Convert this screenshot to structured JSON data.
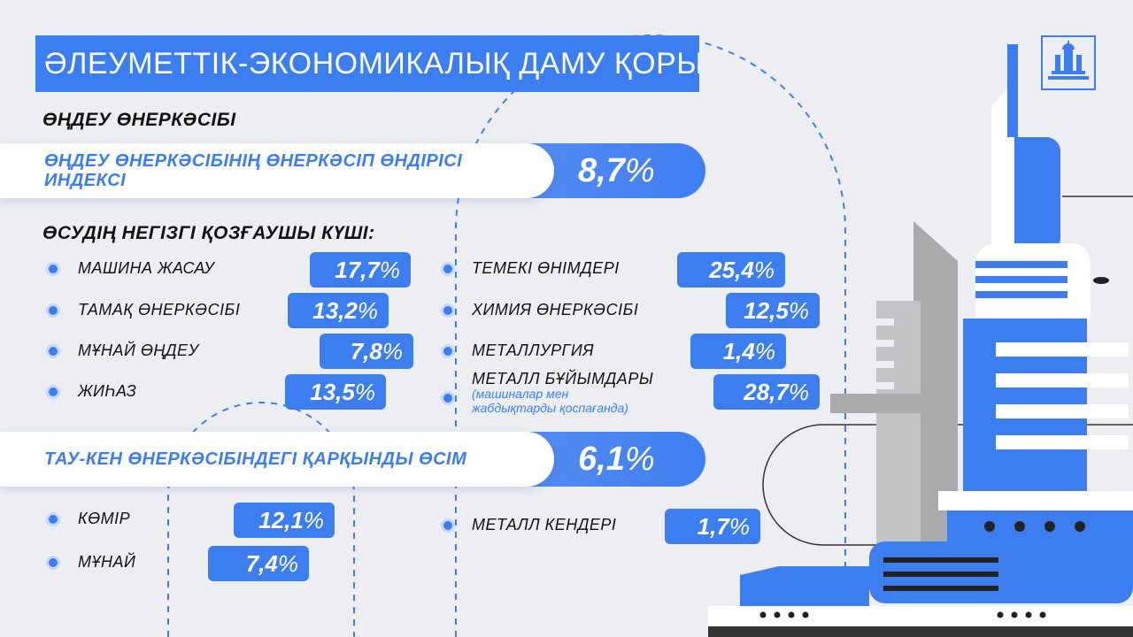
{
  "header": {
    "title": "ӘЛЕУМЕТТІК-ЭКОНОМИКАЛЫҚ ДАМУ ҚОРЫТЫНДЫЛАРЫ"
  },
  "manufacturing": {
    "heading": "ӨҢДЕУ ӨНЕРКӘСІБІ",
    "index_label": "ӨҢДЕУ ӨНЕРКӘСІБІНІҢ ӨНЕРКӘСІП ӨНДІРІСІ ИНДЕКСІ",
    "index_value": "8,7",
    "drivers_heading": "ӨСУДІҢ НЕГІЗГІ ҚОЗҒАУШЫ КҮШІ:",
    "left_items": [
      {
        "label": "МАШИНА ЖАСАУ",
        "value": "17,7"
      },
      {
        "label": "ТАМАҚ ӨНЕРКӘСІБІ",
        "value": "13,2"
      },
      {
        "label": "МҰНАЙ ӨҢДЕУ",
        "value": "7,8"
      },
      {
        "label": "ЖИҺАЗ",
        "value": "13,5"
      }
    ],
    "right_items": [
      {
        "label": "ТЕМЕКІ ӨНІМДЕРІ",
        "value": "25,4"
      },
      {
        "label": "ХИМИЯ ӨНЕРКӘСІБІ",
        "value": "12,5"
      },
      {
        "label": "МЕТАЛЛУРГИЯ",
        "value": "1,4"
      },
      {
        "label": "МЕТАЛЛ БҰЙЫМДАРЫ",
        "sub1": "(машиналар мен",
        "sub2": "жабдықтарды қоспағанда)",
        "value": "28,7"
      }
    ]
  },
  "mining": {
    "label": "ТАУ-КЕН ӨНЕРКӘСІБІНДЕГІ ҚАРҚЫНДЫ ӨСІМ",
    "value": "6,1",
    "left_items": [
      {
        "label": "КӨМІР",
        "value": "12,1"
      },
      {
        "label": "МҰНАЙ",
        "value": "7,4"
      }
    ],
    "right_items": [
      {
        "label": "МЕТАЛЛ КЕНДЕРІ",
        "value": "1,7"
      }
    ]
  },
  "percent_sign": "%",
  "colors": {
    "accent": "#3c7ef0",
    "background": "#eceef2",
    "gray": "#a9aaac"
  },
  "icons": {
    "logo": "government-building-emblem-icon",
    "bullet": "dot-bullet-icon"
  }
}
